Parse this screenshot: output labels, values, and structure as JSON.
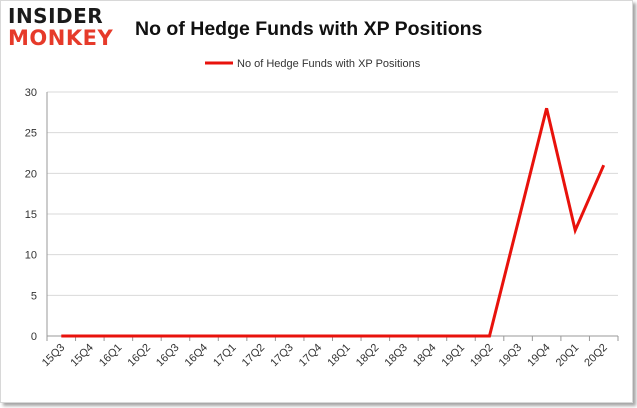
{
  "brand": {
    "line1": "INSIDER",
    "line2": "MONKEY"
  },
  "colors": {
    "series": "#e8120c",
    "brand_red": "#e63a2a",
    "grid": "#d9d9d9"
  },
  "chart_data": {
    "type": "line",
    "title": "No of Hedge Funds with XP Positions",
    "xlabel": "",
    "ylabel": "",
    "ylim": [
      0,
      30
    ],
    "yticks": [
      0,
      5,
      10,
      15,
      20,
      25,
      30
    ],
    "grid": "horizontal",
    "legend_position": "top-center",
    "categories": [
      "15Q3",
      "15Q4",
      "16Q1",
      "16Q2",
      "16Q3",
      "16Q4",
      "17Q1",
      "17Q2",
      "17Q3",
      "17Q4",
      "18Q1",
      "18Q2",
      "18Q3",
      "18Q4",
      "19Q1",
      "19Q2",
      "19Q3",
      "19Q4",
      "20Q1",
      "20Q2"
    ],
    "series": [
      {
        "name": "No of Hedge Funds with XP Positions",
        "values": [
          0,
          0,
          0,
          0,
          0,
          0,
          0,
          0,
          0,
          0,
          0,
          0,
          0,
          0,
          0,
          0,
          14,
          28,
          13,
          21
        ]
      }
    ]
  }
}
